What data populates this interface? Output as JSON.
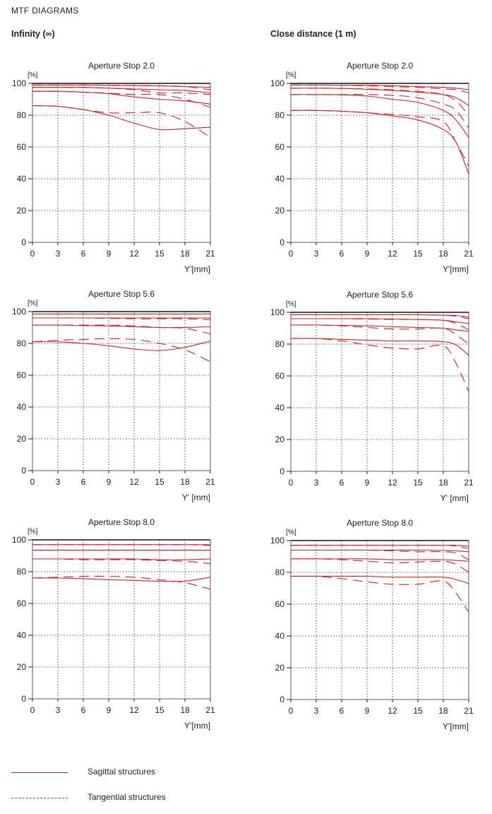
{
  "page": {
    "title": "MTF DIAGRAMS",
    "columns": [
      {
        "heading": "Infinity (∞)"
      },
      {
        "heading": "Close distance (1 m)"
      }
    ]
  },
  "legend": {
    "items": [
      {
        "label": "Sagittal structures",
        "style": "solid"
      },
      {
        "label": "Tangential structures",
        "style": "dashed"
      }
    ]
  },
  "colors": {
    "curve": "#d42020",
    "axis": "#222222",
    "grid": "#555555"
  },
  "chart_data": [
    {
      "type": "line",
      "title": "Aperture Stop 2.0",
      "ylabel": "[%]",
      "xlabel": "Y'[mm]",
      "xlim": [
        0,
        21
      ],
      "ylim": [
        0,
        100
      ],
      "xticks": [
        "0",
        "3",
        "6",
        "9",
        "12",
        "15",
        "18",
        "21"
      ],
      "yticks": [
        "0",
        "20",
        "40",
        "60",
        "80",
        "100"
      ],
      "grid": true,
      "x": [
        0,
        3,
        6,
        9,
        12,
        15,
        18,
        21
      ],
      "series": [
        {
          "style": "solid",
          "values": [
            99,
            99,
            99,
            98.8,
            98.6,
            98.4,
            98,
            97.5
          ]
        },
        {
          "style": "dashed",
          "values": [
            99,
            99,
            99,
            98.9,
            98.7,
            98.5,
            98,
            96
          ]
        },
        {
          "style": "solid",
          "values": [
            97.5,
            97.5,
            97.5,
            97,
            96.5,
            96,
            95.5,
            94
          ]
        },
        {
          "style": "dashed",
          "values": [
            97.5,
            97.5,
            97.4,
            97,
            96,
            94,
            94,
            93
          ]
        },
        {
          "style": "solid",
          "values": [
            95,
            95,
            94.5,
            93.5,
            91.5,
            90,
            89,
            87
          ]
        },
        {
          "style": "dashed",
          "values": [
            95,
            95,
            94.5,
            93.8,
            93,
            93,
            90,
            85
          ]
        },
        {
          "style": "solid",
          "values": [
            86,
            85.5,
            83.5,
            80,
            75,
            71,
            71.5,
            72.5
          ]
        },
        {
          "style": "dashed",
          "values": [
            86,
            85.5,
            83.5,
            81.5,
            81.5,
            81.5,
            76,
            66
          ]
        }
      ]
    },
    {
      "type": "line",
      "title": "Aperture Stop 2.0",
      "ylabel": "[%]",
      "xlabel": "Y'[mm]",
      "xlim": [
        0,
        21
      ],
      "ylim": [
        0,
        100
      ],
      "xticks": [
        "0",
        "3",
        "6",
        "9",
        "12",
        "15",
        "18",
        "21"
      ],
      "yticks": [
        "0",
        "20",
        "40",
        "60",
        "80",
        "100"
      ],
      "grid": true,
      "x": [
        0,
        3,
        6,
        9,
        12,
        15,
        18,
        19.5,
        21
      ],
      "series": [
        {
          "style": "solid",
          "values": [
            99,
            99,
            98.9,
            98.8,
            98.5,
            98,
            97.5,
            97,
            96
          ]
        },
        {
          "style": "dashed",
          "values": [
            99,
            99,
            98.8,
            98.5,
            98,
            97.5,
            96.5,
            96,
            94
          ]
        },
        {
          "style": "solid",
          "values": [
            97,
            97,
            96.8,
            96.3,
            95.5,
            94.5,
            93,
            91,
            86
          ]
        },
        {
          "style": "dashed",
          "values": [
            97,
            97,
            96.8,
            96.5,
            96,
            95,
            93,
            89,
            80
          ]
        },
        {
          "style": "solid",
          "values": [
            93,
            93,
            92.8,
            92,
            90,
            88,
            83,
            77,
            66
          ]
        },
        {
          "style": "dashed",
          "values": [
            93,
            93,
            93,
            93,
            92.5,
            91,
            87,
            83,
            72
          ]
        },
        {
          "style": "solid",
          "values": [
            83,
            83,
            82.5,
            81.5,
            79.5,
            77,
            71,
            63,
            43
          ]
        },
        {
          "style": "dashed",
          "values": [
            83,
            83,
            82.5,
            81.5,
            80.5,
            79,
            76,
            63,
            48
          ]
        }
      ]
    },
    {
      "type": "line",
      "title": "Aperture Stop 5.6",
      "ylabel": "[%]",
      "xlabel": "Y' [mm]",
      "xlim": [
        0,
        21
      ],
      "ylim": [
        0,
        100
      ],
      "xticks": [
        "0",
        "3",
        "6",
        "9",
        "12",
        "15",
        "18",
        "21"
      ],
      "yticks": [
        "0",
        "20",
        "40",
        "60",
        "80",
        "100"
      ],
      "grid": true,
      "x": [
        0,
        3,
        6,
        9,
        12,
        15,
        18,
        21
      ],
      "series": [
        {
          "style": "solid",
          "values": [
            98.5,
            98.5,
            98.5,
            98.5,
            98.5,
            98.5,
            98.5,
            98.5
          ]
        },
        {
          "style": "dashed",
          "values": [
            98.5,
            98.5,
            98.5,
            98.5,
            98.5,
            98.5,
            98.5,
            98.5
          ]
        },
        {
          "style": "solid",
          "values": [
            96,
            96,
            96,
            96,
            96,
            96,
            96,
            96
          ]
        },
        {
          "style": "dashed",
          "values": [
            96,
            96,
            96,
            95.8,
            95.5,
            95.5,
            95.5,
            95
          ]
        },
        {
          "style": "solid",
          "values": [
            91.5,
            91.5,
            91.2,
            91,
            90.5,
            90,
            90,
            90.5
          ]
        },
        {
          "style": "dashed",
          "values": [
            91.5,
            91.5,
            91.5,
            91.5,
            91,
            90,
            89.5,
            86
          ]
        },
        {
          "style": "solid",
          "values": [
            81,
            81,
            80,
            78.5,
            76.5,
            75.5,
            77.5,
            81.5
          ]
        },
        {
          "style": "dashed",
          "values": [
            81,
            82,
            82.5,
            83,
            82.5,
            80,
            76,
            68.5
          ]
        }
      ]
    },
    {
      "type": "line",
      "title": "Aperture Stop 5.6",
      "ylabel": "[%]",
      "xlabel": "Y' [mm]",
      "xlim": [
        0,
        21
      ],
      "ylim": [
        0,
        100
      ],
      "xticks": [
        "0",
        "3",
        "6",
        "9",
        "12",
        "15",
        "18",
        "21"
      ],
      "yticks": [
        "0",
        "20",
        "40",
        "60",
        "80",
        "100"
      ],
      "grid": true,
      "x": [
        0,
        3,
        6,
        9,
        12,
        15,
        18,
        19.5,
        21
      ],
      "series": [
        {
          "style": "solid",
          "values": [
            98.5,
            98.5,
            98.5,
            98.5,
            98.5,
            98.5,
            98.2,
            98,
            97
          ]
        },
        {
          "style": "dashed",
          "values": [
            98.5,
            98.5,
            98.5,
            98.5,
            98.5,
            98.5,
            98.2,
            97.5,
            96
          ]
        },
        {
          "style": "solid",
          "values": [
            96,
            96,
            96,
            96,
            95.8,
            95.5,
            95,
            94,
            93
          ]
        },
        {
          "style": "dashed",
          "values": [
            96,
            96,
            96,
            95.8,
            95.5,
            95.5,
            95,
            93,
            89
          ]
        },
        {
          "style": "solid",
          "values": [
            92,
            92,
            91.8,
            91.5,
            91,
            90.5,
            90,
            89,
            88
          ]
        },
        {
          "style": "dashed",
          "values": [
            92,
            92,
            91.5,
            90.5,
            89.5,
            89.5,
            90,
            86,
            80
          ]
        },
        {
          "style": "solid",
          "values": [
            83.5,
            83.5,
            83,
            82.5,
            82,
            82,
            81.5,
            79.5,
            73
          ]
        },
        {
          "style": "dashed",
          "values": [
            83.5,
            83.5,
            82,
            79.5,
            77.5,
            77,
            79,
            68,
            50
          ]
        }
      ]
    },
    {
      "type": "line",
      "title": "Aperture Stop 8.0",
      "ylabel": "[%]",
      "xlabel": "Y'[mm]",
      "xlim": [
        0,
        21
      ],
      "ylim": [
        0,
        100
      ],
      "xticks": [
        "0",
        "3",
        "6",
        "9",
        "12",
        "15",
        "18",
        "21"
      ],
      "yticks": [
        "0",
        "20",
        "40",
        "60",
        "80",
        "100"
      ],
      "grid": true,
      "x": [
        0,
        3,
        6,
        9,
        12,
        15,
        18,
        21
      ],
      "series": [
        {
          "style": "solid",
          "values": [
            97,
            97,
            97,
            97,
            97,
            97,
            97,
            97
          ]
        },
        {
          "style": "dashed",
          "values": [
            97,
            97,
            97,
            97,
            97,
            97,
            97,
            96.5
          ]
        },
        {
          "style": "solid",
          "values": [
            93.5,
            93.5,
            93.5,
            93.5,
            93.5,
            93.5,
            93.5,
            93.5
          ]
        },
        {
          "style": "dashed",
          "values": [
            93.5,
            93.5,
            93.5,
            93.5,
            93.5,
            93.5,
            93.5,
            93.5
          ]
        },
        {
          "style": "solid",
          "values": [
            88,
            88,
            88,
            88,
            88,
            87.5,
            87.5,
            88
          ]
        },
        {
          "style": "dashed",
          "values": [
            88,
            88,
            87.5,
            87.5,
            87.5,
            87,
            86.5,
            85
          ]
        },
        {
          "style": "solid",
          "values": [
            76,
            76,
            75.5,
            75,
            74.5,
            74,
            74,
            76.5
          ]
        },
        {
          "style": "dashed",
          "values": [
            76,
            76.5,
            77,
            77,
            76.5,
            75,
            73,
            69
          ]
        }
      ]
    },
    {
      "type": "line",
      "title": "Aperture Stop 8.0",
      "ylabel": "[%]",
      "xlabel": "Y'[mm]",
      "xlim": [
        0,
        21
      ],
      "ylim": [
        0,
        100
      ],
      "xticks": [
        "0",
        "3",
        "6",
        "9",
        "12",
        "15",
        "18",
        "21"
      ],
      "yticks": [
        "0",
        "20",
        "40",
        "60",
        "80",
        "100"
      ],
      "grid": true,
      "x": [
        0,
        3,
        6,
        9,
        12,
        15,
        18,
        19.5,
        21
      ],
      "series": [
        {
          "style": "solid",
          "values": [
            97,
            97,
            97,
            97,
            97,
            97,
            97,
            97,
            96.5
          ]
        },
        {
          "style": "dashed",
          "values": [
            97,
            97,
            97,
            97,
            97,
            97,
            97,
            96.5,
            95
          ]
        },
        {
          "style": "solid",
          "values": [
            94,
            94,
            94,
            94,
            94,
            94,
            93.8,
            93.5,
            93
          ]
        },
        {
          "style": "dashed",
          "values": [
            94,
            94,
            94,
            94,
            93.5,
            93,
            93,
            92,
            88
          ]
        },
        {
          "style": "solid",
          "values": [
            88.5,
            88.5,
            88.5,
            88.5,
            88,
            88,
            88,
            87.5,
            87
          ]
        },
        {
          "style": "dashed",
          "values": [
            88.5,
            88.5,
            88,
            87,
            86,
            86.5,
            87,
            85,
            80
          ]
        },
        {
          "style": "solid",
          "values": [
            77.5,
            77.5,
            77.5,
            77.5,
            77,
            77,
            77,
            75.5,
            73
          ]
        },
        {
          "style": "dashed",
          "values": [
            77.5,
            77.5,
            76,
            74,
            72.5,
            72.5,
            74.5,
            67,
            55
          ]
        }
      ]
    }
  ]
}
